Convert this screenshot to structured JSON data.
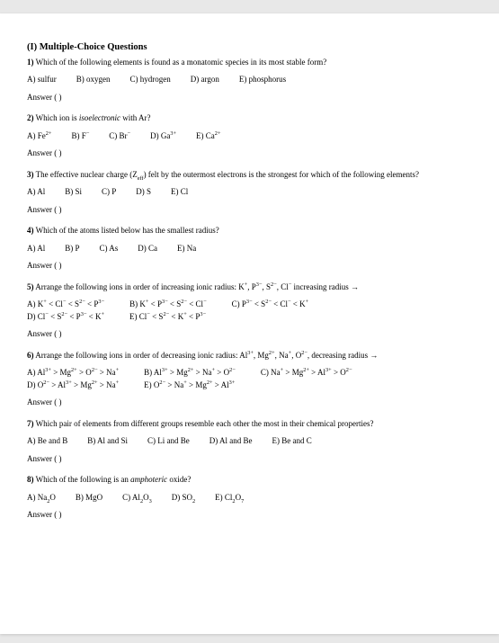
{
  "heading": "(I) Multiple-Choice Questions",
  "answer_label": "Answer (            )",
  "questions": [
    {
      "num": "1)",
      "text": " Which of the following elements is found as a monatomic species in its most stable form?",
      "choices": [
        "A) sulfur",
        "B) oxygen",
        "C) hydrogen",
        "D) argon",
        "E) phosphorus"
      ]
    },
    {
      "num": "2)",
      "text_pre": " Which ion is ",
      "text_italic": "isoelectronic",
      "text_post": " with Ar?",
      "choices_html": [
        "A) Fe<sup>2+</sup>",
        "B) F<sup>−</sup>",
        "C) Br<sup>−</sup>",
        "D) Ga<sup>3+</sup>",
        "E) Ca<sup>2+</sup>"
      ]
    },
    {
      "num": "3)",
      "text_html": " The effective nuclear charge (Z<sub>eff</sub>) felt by the outermost electrons is the strongest for which of the following elements?",
      "choices": [
        "A) Al",
        "B) Si",
        "C) P",
        "D) S",
        "E) Cl"
      ]
    },
    {
      "num": "4)",
      "text": " Which of the atoms listed below has the smallest radius?",
      "choices": [
        "A) Al",
        "B) P",
        "C) As",
        "D) Ca",
        "E) Na"
      ]
    },
    {
      "num": "5)",
      "text_html": " Arrange the following ions in order of increasing ionic radius: K<sup>+</sup>, P<sup>3−</sup>, S<sup>2−</sup>, Cl<sup>−</sup> increasing radius →",
      "stack_rows_html": [
        [
          "A) K<sup>+</sup> &lt; Cl<sup>−</sup> &lt; S<sup>2−</sup> &lt; P<sup>3−</sup>",
          "B) K<sup>+</sup> &lt; P<sup>3−</sup> &lt; S<sup>2−</sup> &lt; Cl<sup>−</sup>",
          "C) P<sup>3−</sup> &lt; S<sup>2−</sup> &lt; Cl<sup>−</sup> &lt; K<sup>+</sup>"
        ],
        [
          "D) Cl<sup>−</sup> &lt; S<sup>2−</sup> &lt; P<sup>3−</sup> &lt; K<sup>+</sup>",
          "E) Cl<sup>−</sup> &lt; S<sup>2−</sup> &lt; K<sup>+</sup> &lt; P<sup>3−</sup>"
        ]
      ]
    },
    {
      "num": "6)",
      "text_html": " Arrange the following ions in order of decreasing ionic radius: Al<sup>3+</sup>, Mg<sup>2+</sup>, Na<sup>+</sup>, O<sup>2−</sup>, decreasing radius →",
      "stack_rows_html": [
        [
          "A) Al<sup>3+</sup> &gt; Mg<sup>2+</sup> &gt; O<sup>2−</sup> &gt; Na<sup>+</sup>",
          "B) Al<sup>3+</sup> &gt; Mg<sup>2+</sup> &gt; Na<sup>+</sup> &gt; O<sup>2−</sup>",
          "C) Na<sup>+</sup> &gt; Mg<sup>2+</sup> &gt; Al<sup>3+</sup> &gt; O<sup>2−</sup>"
        ],
        [
          "D) O<sup>2−</sup> &gt; Al<sup>3+</sup> &gt; Mg<sup>2+</sup> &gt; Na<sup>+</sup>",
          "E) O<sup>2−</sup> &gt; Na<sup>+</sup> &gt; Mg<sup>2+</sup> &gt; Al<sup>3+</sup>"
        ]
      ]
    },
    {
      "num": "7)",
      "text": " Which pair of elements from different groups resemble each other the most in their chemical properties?",
      "choices": [
        "A) Be and B",
        "B) Al and Si",
        "C) Li and Be",
        "D) Al and Be",
        "E) Be and C"
      ]
    },
    {
      "num": "8)",
      "text_pre": " Which of the following is an ",
      "text_italic": "amphoteric",
      "text_post": " oxide?",
      "choices_html": [
        "A) Na<sub>2</sub>O",
        "B) MgO",
        "C) Al<sub>2</sub>O<sub>3</sub>",
        "D) SO<sub>2</sub>",
        "E) Cl<sub>2</sub>O<sub>7</sub>"
      ]
    }
  ]
}
